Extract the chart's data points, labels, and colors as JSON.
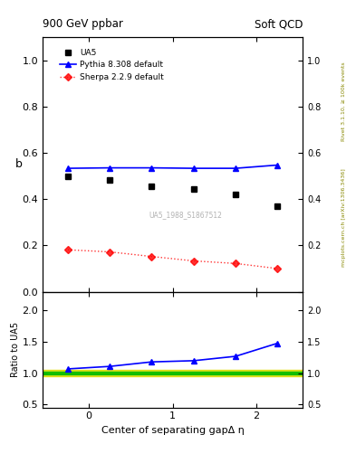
{
  "title_left": "900 GeV ppbar",
  "title_right": "Soft QCD",
  "right_label_top": "Rivet 3.1.10, ≥ 100k events",
  "right_label_bottom": "mcplots.cern.ch [arXiv:1306.3436]",
  "ylabel_main": "b",
  "ylabel_ratio": "Ratio to UA5",
  "xlabel": "Center of separating gapΔ η",
  "watermark": "UA5_1988_S1867512",
  "ua5_x": [
    -0.25,
    0.25,
    0.75,
    1.25,
    1.75,
    2.25
  ],
  "ua5_y": [
    0.5,
    0.484,
    0.454,
    0.445,
    0.421,
    0.37
  ],
  "pythia_x": [
    -0.25,
    0.25,
    0.75,
    1.25,
    1.75,
    2.25
  ],
  "pythia_y": [
    0.533,
    0.535,
    0.535,
    0.533,
    0.533,
    0.547
  ],
  "sherpa_x": [
    -0.25,
    0.25,
    0.75,
    1.25,
    1.75,
    2.25
  ],
  "sherpa_y": [
    0.181,
    0.172,
    0.152,
    0.133,
    0.122,
    0.1
  ],
  "ratio_pythia_x": [
    -0.25,
    0.25,
    0.75,
    1.25,
    1.75,
    2.25
  ],
  "ratio_pythia_y": [
    1.066,
    1.106,
    1.178,
    1.197,
    1.267,
    1.476
  ],
  "xlim": [
    -0.55,
    2.55
  ],
  "ylim_main": [
    0.0,
    1.1
  ],
  "ylim_ratio": [
    0.45,
    2.3
  ],
  "ua5_color": "black",
  "pythia_color": "blue",
  "sherpa_color": "red",
  "band_green": "#00bb00",
  "band_yellow": "#dddd00",
  "yticks_main": [
    0.0,
    0.2,
    0.4,
    0.6,
    0.8,
    1.0
  ],
  "yticks_ratio": [
    0.5,
    1.0,
    1.5,
    2.0
  ],
  "xticks": [
    0,
    1,
    2
  ]
}
